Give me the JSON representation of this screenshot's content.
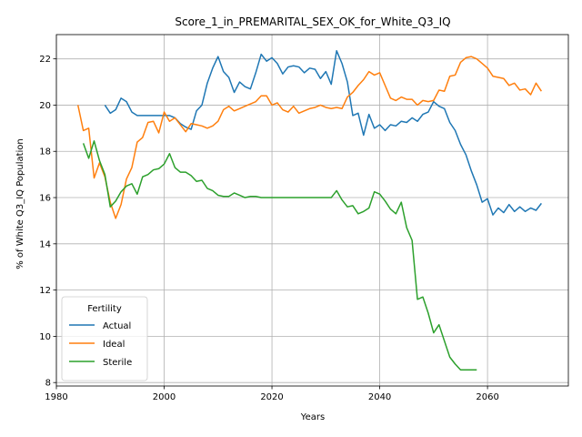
{
  "chart_data": {
    "type": "line",
    "title": "Score_1_in_PREMARITAL_SEX_OK_for_White_Q3_IQ",
    "xlabel": "Years",
    "ylabel": "% of White Q3_IQ Population",
    "xlim": [
      1980,
      2075
    ],
    "ylim": [
      7.85,
      23.05
    ],
    "xticks": [
      1980,
      2000,
      2020,
      2040,
      2060
    ],
    "yticks": [
      8,
      10,
      12,
      14,
      16,
      18,
      20,
      22
    ],
    "grid": true,
    "legend": {
      "title": "Fertility",
      "placement": "lower-left"
    },
    "series": [
      {
        "name": "Actual",
        "color": "#1f77b4",
        "x": [
          1989,
          1990,
          1991,
          1992,
          1993,
          1994,
          1995,
          1996,
          1997,
          1998,
          1999,
          2000,
          2001,
          2002,
          2003,
          2004,
          2005,
          2006,
          2007,
          2008,
          2009,
          2010,
          2011,
          2012,
          2013,
          2014,
          2015,
          2016,
          2017,
          2018,
          2019,
          2020,
          2021,
          2022,
          2023,
          2024,
          2025,
          2026,
          2027,
          2028,
          2029,
          2030,
          2031,
          2032,
          2033,
          2034,
          2035,
          2036,
          2037,
          2038,
          2039,
          2040,
          2041,
          2042,
          2043,
          2044,
          2045,
          2046,
          2047,
          2048,
          2049,
          2050,
          2051,
          2052,
          2053,
          2054,
          2055,
          2056,
          2057,
          2058,
          2059,
          2060,
          2061,
          2062,
          2063,
          2064,
          2065,
          2066,
          2067,
          2068,
          2069,
          2070
        ],
        "values": [
          20.0,
          19.65,
          19.8,
          20.3,
          20.15,
          19.7,
          19.55,
          19.55,
          19.55,
          19.55,
          19.55,
          19.55,
          19.55,
          19.45,
          19.2,
          19.05,
          18.95,
          19.75,
          20.0,
          20.95,
          21.6,
          22.1,
          21.45,
          21.2,
          20.55,
          21.0,
          20.8,
          20.7,
          21.4,
          22.2,
          21.9,
          22.05,
          21.8,
          21.35,
          21.65,
          21.7,
          21.65,
          21.4,
          21.6,
          21.55,
          21.15,
          21.45,
          20.9,
          22.35,
          21.8,
          21.0,
          19.55,
          19.65,
          18.7,
          19.6,
          19.0,
          19.15,
          18.9,
          19.15,
          19.1,
          19.3,
          19.25,
          19.45,
          19.3,
          19.6,
          19.7,
          20.15,
          19.95,
          19.85,
          19.25,
          18.9,
          18.3,
          17.85,
          17.15,
          16.55,
          15.8,
          15.95,
          15.25,
          15.55,
          15.35,
          15.7,
          15.4,
          15.6,
          15.4,
          15.55,
          15.45,
          15.75
        ]
      },
      {
        "name": "Ideal",
        "color": "#ff7f0e",
        "x": [
          1984,
          1985,
          1986,
          1987,
          1988,
          1989,
          1990,
          1991,
          1992,
          1993,
          1994,
          1995,
          1996,
          1997,
          1998,
          1999,
          2000,
          2001,
          2002,
          2003,
          2004,
          2005,
          2006,
          2007,
          2008,
          2009,
          2010,
          2011,
          2012,
          2013,
          2014,
          2015,
          2016,
          2017,
          2018,
          2019,
          2020,
          2021,
          2022,
          2023,
          2024,
          2025,
          2026,
          2027,
          2028,
          2029,
          2030,
          2031,
          2032,
          2033,
          2034,
          2035,
          2036,
          2037,
          2038,
          2039,
          2040,
          2041,
          2042,
          2043,
          2044,
          2045,
          2046,
          2047,
          2048,
          2049,
          2050,
          2051,
          2052,
          2053,
          2054,
          2055,
          2056,
          2057,
          2058,
          2059,
          2060,
          2061,
          2062,
          2063,
          2064,
          2065,
          2066,
          2067,
          2068,
          2069,
          2070
        ],
        "values": [
          20.0,
          18.9,
          19.0,
          16.85,
          17.5,
          16.9,
          15.8,
          15.1,
          15.7,
          16.8,
          17.3,
          18.4,
          18.6,
          19.25,
          19.3,
          18.8,
          19.7,
          19.3,
          19.45,
          19.15,
          18.85,
          19.2,
          19.15,
          19.1,
          19.0,
          19.1,
          19.3,
          19.8,
          19.95,
          19.75,
          19.85,
          19.95,
          20.05,
          20.15,
          20.4,
          20.4,
          20.0,
          20.1,
          19.8,
          19.7,
          19.95,
          19.65,
          19.75,
          19.85,
          19.9,
          20.0,
          19.9,
          19.85,
          19.9,
          19.85,
          20.35,
          20.55,
          20.85,
          21.1,
          21.45,
          21.3,
          21.4,
          20.85,
          20.3,
          20.2,
          20.35,
          20.25,
          20.25,
          20.0,
          20.2,
          20.15,
          20.2,
          20.65,
          20.6,
          21.25,
          21.3,
          21.85,
          22.05,
          22.1,
          22.0,
          21.8,
          21.6,
          21.25,
          21.2,
          21.15,
          20.85,
          20.95,
          20.65,
          20.7,
          20.45,
          20.95,
          20.6
        ]
      },
      {
        "name": "Sterile",
        "color": "#2ca02c",
        "x": [
          1985,
          1986,
          1987,
          1988,
          1989,
          1990,
          1991,
          1992,
          1993,
          1994,
          1995,
          1996,
          1997,
          1998,
          1999,
          2000,
          2001,
          2002,
          2003,
          2004,
          2005,
          2006,
          2007,
          2008,
          2009,
          2010,
          2011,
          2012,
          2013,
          2014,
          2015,
          2016,
          2017,
          2018,
          2019,
          2020,
          2021,
          2022,
          2023,
          2024,
          2025,
          2026,
          2027,
          2028,
          2029,
          2030,
          2031,
          2032,
          2033,
          2034,
          2035,
          2036,
          2037,
          2038,
          2039,
          2040,
          2041,
          2042,
          2043,
          2044,
          2045,
          2046,
          2047,
          2048,
          2049,
          2050,
          2051,
          2052,
          2053,
          2054,
          2055,
          2056,
          2057,
          2058
        ],
        "values": [
          18.35,
          17.7,
          18.45,
          17.6,
          17.0,
          15.6,
          15.85,
          16.25,
          16.5,
          16.6,
          16.15,
          16.9,
          17.0,
          17.2,
          17.25,
          17.45,
          17.9,
          17.3,
          17.1,
          17.1,
          16.95,
          16.7,
          16.75,
          16.4,
          16.3,
          16.1,
          16.05,
          16.05,
          16.2,
          16.1,
          16.0,
          16.05,
          16.05,
          16.0,
          16.0,
          16.0,
          16.0,
          16.0,
          16.0,
          16.0,
          16.0,
          16.0,
          16.0,
          16.0,
          16.0,
          16.0,
          16.0,
          16.3,
          15.9,
          15.6,
          15.65,
          15.3,
          15.4,
          15.55,
          16.25,
          16.15,
          15.85,
          15.5,
          15.3,
          15.8,
          14.7,
          14.15,
          11.6,
          11.7,
          11.0,
          10.15,
          10.5,
          9.8,
          9.1,
          8.8,
          8.55,
          8.55,
          8.55,
          8.55
        ]
      }
    ]
  }
}
